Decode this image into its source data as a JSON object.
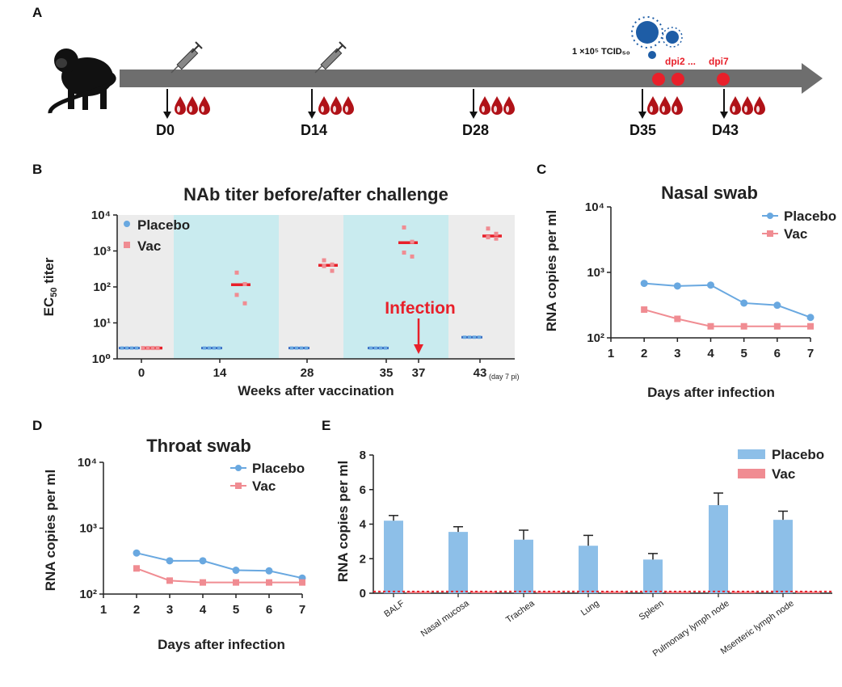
{
  "panels": {
    "A": {
      "letter": "A",
      "timepoints": [
        "D0",
        "D14",
        "D28",
        "D35",
        "D43"
      ],
      "dose_label": "1 ×10⁵ TCID₅₀",
      "dpi_labels": [
        "dpi2 ...",
        "dpi7"
      ]
    },
    "B": {
      "letter": "B"
    },
    "C": {
      "letter": "C"
    },
    "D": {
      "letter": "D"
    },
    "E": {
      "letter": "E"
    }
  },
  "colors": {
    "placebo": "#69a8e0",
    "vac": "#f08c92",
    "placebo_bar": "#8dbfe8",
    "vac_red": "#e8202a",
    "band_gray": "#ececec",
    "band_cyan": "#c9ebef"
  },
  "chart_data": [
    {
      "id": "B",
      "type": "scatter",
      "title": "NAb titer before/after challenge",
      "xlabel": "Weeks after vaccination",
      "ylabel": "EC50 titer",
      "yscale": "log",
      "ylim": [
        1,
        10000
      ],
      "yticks": [
        "10⁰",
        "10¹",
        "10²",
        "10³",
        "10⁴"
      ],
      "xticks": [
        "0",
        "14",
        "28",
        "35",
        "37",
        "43"
      ],
      "xtick_note": "(day 7 pi)",
      "annotation": "Infection",
      "legend": [
        "Placebo",
        "Vac"
      ],
      "series": [
        {
          "name": "Placebo",
          "points": [
            {
              "x": "0",
              "values": [
                2,
                2,
                2,
                2
              ],
              "median": 2
            },
            {
              "x": "14",
              "values": [
                2,
                2,
                2,
                2
              ],
              "median": 2
            },
            {
              "x": "28",
              "values": [
                2,
                2,
                2,
                2
              ],
              "median": 2
            },
            {
              "x": "35",
              "values": [
                2,
                2,
                2,
                2
              ],
              "median": 2
            },
            {
              "x": "43",
              "values": [
                4,
                4,
                4,
                4
              ],
              "median": 4
            }
          ]
        },
        {
          "name": "Vac",
          "points": [
            {
              "x": "0",
              "values": [
                2,
                2,
                2,
                2
              ],
              "median": 2
            },
            {
              "x": "14",
              "values": [
                250,
                120,
                60,
                35
              ],
              "median": 115
            },
            {
              "x": "28",
              "values": [
                550,
                420,
                380,
                280
              ],
              "median": 400
            },
            {
              "x": "35",
              "values": [
                4500,
                1800,
                900,
                700
              ],
              "median": 1700
            },
            {
              "x": "43",
              "values": [
                4200,
                3000,
                2400,
                2200
              ],
              "median": 2600
            }
          ]
        }
      ]
    },
    {
      "id": "C",
      "type": "line",
      "title": "Nasal swab",
      "xlabel": "Days after infection",
      "ylabel": "RNA copies per ml",
      "yscale": "log",
      "ylim": [
        100,
        10000
      ],
      "yticks": [
        "10²",
        "10³",
        "10⁴"
      ],
      "x": [
        1,
        2,
        3,
        4,
        5,
        6,
        7
      ],
      "legend": [
        "Placebo",
        "Vac"
      ],
      "series": [
        {
          "name": "Placebo",
          "x": [
            2,
            3,
            4,
            5,
            6,
            7
          ],
          "values": [
            680,
            620,
            640,
            340,
            315,
            205
          ]
        },
        {
          "name": "Vac",
          "x": [
            2,
            3,
            4,
            5,
            6,
            7
          ],
          "values": [
            270,
            195,
            150,
            150,
            150,
            150
          ]
        }
      ]
    },
    {
      "id": "D",
      "type": "line",
      "title": "Throat swab",
      "xlabel": "Days after infection",
      "ylabel": "RNA copies per ml",
      "yscale": "log",
      "ylim": [
        100,
        10000
      ],
      "yticks": [
        "10²",
        "10³",
        "10⁴"
      ],
      "x": [
        1,
        2,
        3,
        4,
        5,
        6,
        7
      ],
      "legend": [
        "Placebo",
        "Vac"
      ],
      "series": [
        {
          "name": "Placebo",
          "x": [
            2,
            3,
            4,
            5,
            6,
            7
          ],
          "values": [
            420,
            320,
            320,
            230,
            225,
            175
          ]
        },
        {
          "name": "Vac",
          "x": [
            2,
            3,
            4,
            5,
            6,
            7
          ],
          "values": [
            245,
            160,
            150,
            150,
            150,
            150
          ]
        }
      ]
    },
    {
      "id": "E",
      "type": "bar",
      "ylabel": "RNA copies per ml",
      "ylim": [
        0,
        8
      ],
      "yticks": [
        "0",
        "2",
        "4",
        "6",
        "8"
      ],
      "categories": [
        "BALF",
        "Nasal mucosa",
        "Trachea",
        "Lung",
        "Spleen",
        "Pulmonary lymph node",
        "Msenteric lymph node"
      ],
      "legend": [
        "Placebo",
        "Vac"
      ],
      "series": [
        {
          "name": "Placebo",
          "values": [
            4.2,
            3.55,
            3.1,
            2.75,
            1.95,
            5.1,
            4.25
          ],
          "errors": [
            0.3,
            0.3,
            0.55,
            0.6,
            0.35,
            0.7,
            0.5
          ]
        },
        {
          "name": "Vac",
          "values": [
            0.1,
            0.1,
            0.1,
            0.1,
            0.1,
            0.1,
            0.1
          ]
        }
      ]
    }
  ]
}
